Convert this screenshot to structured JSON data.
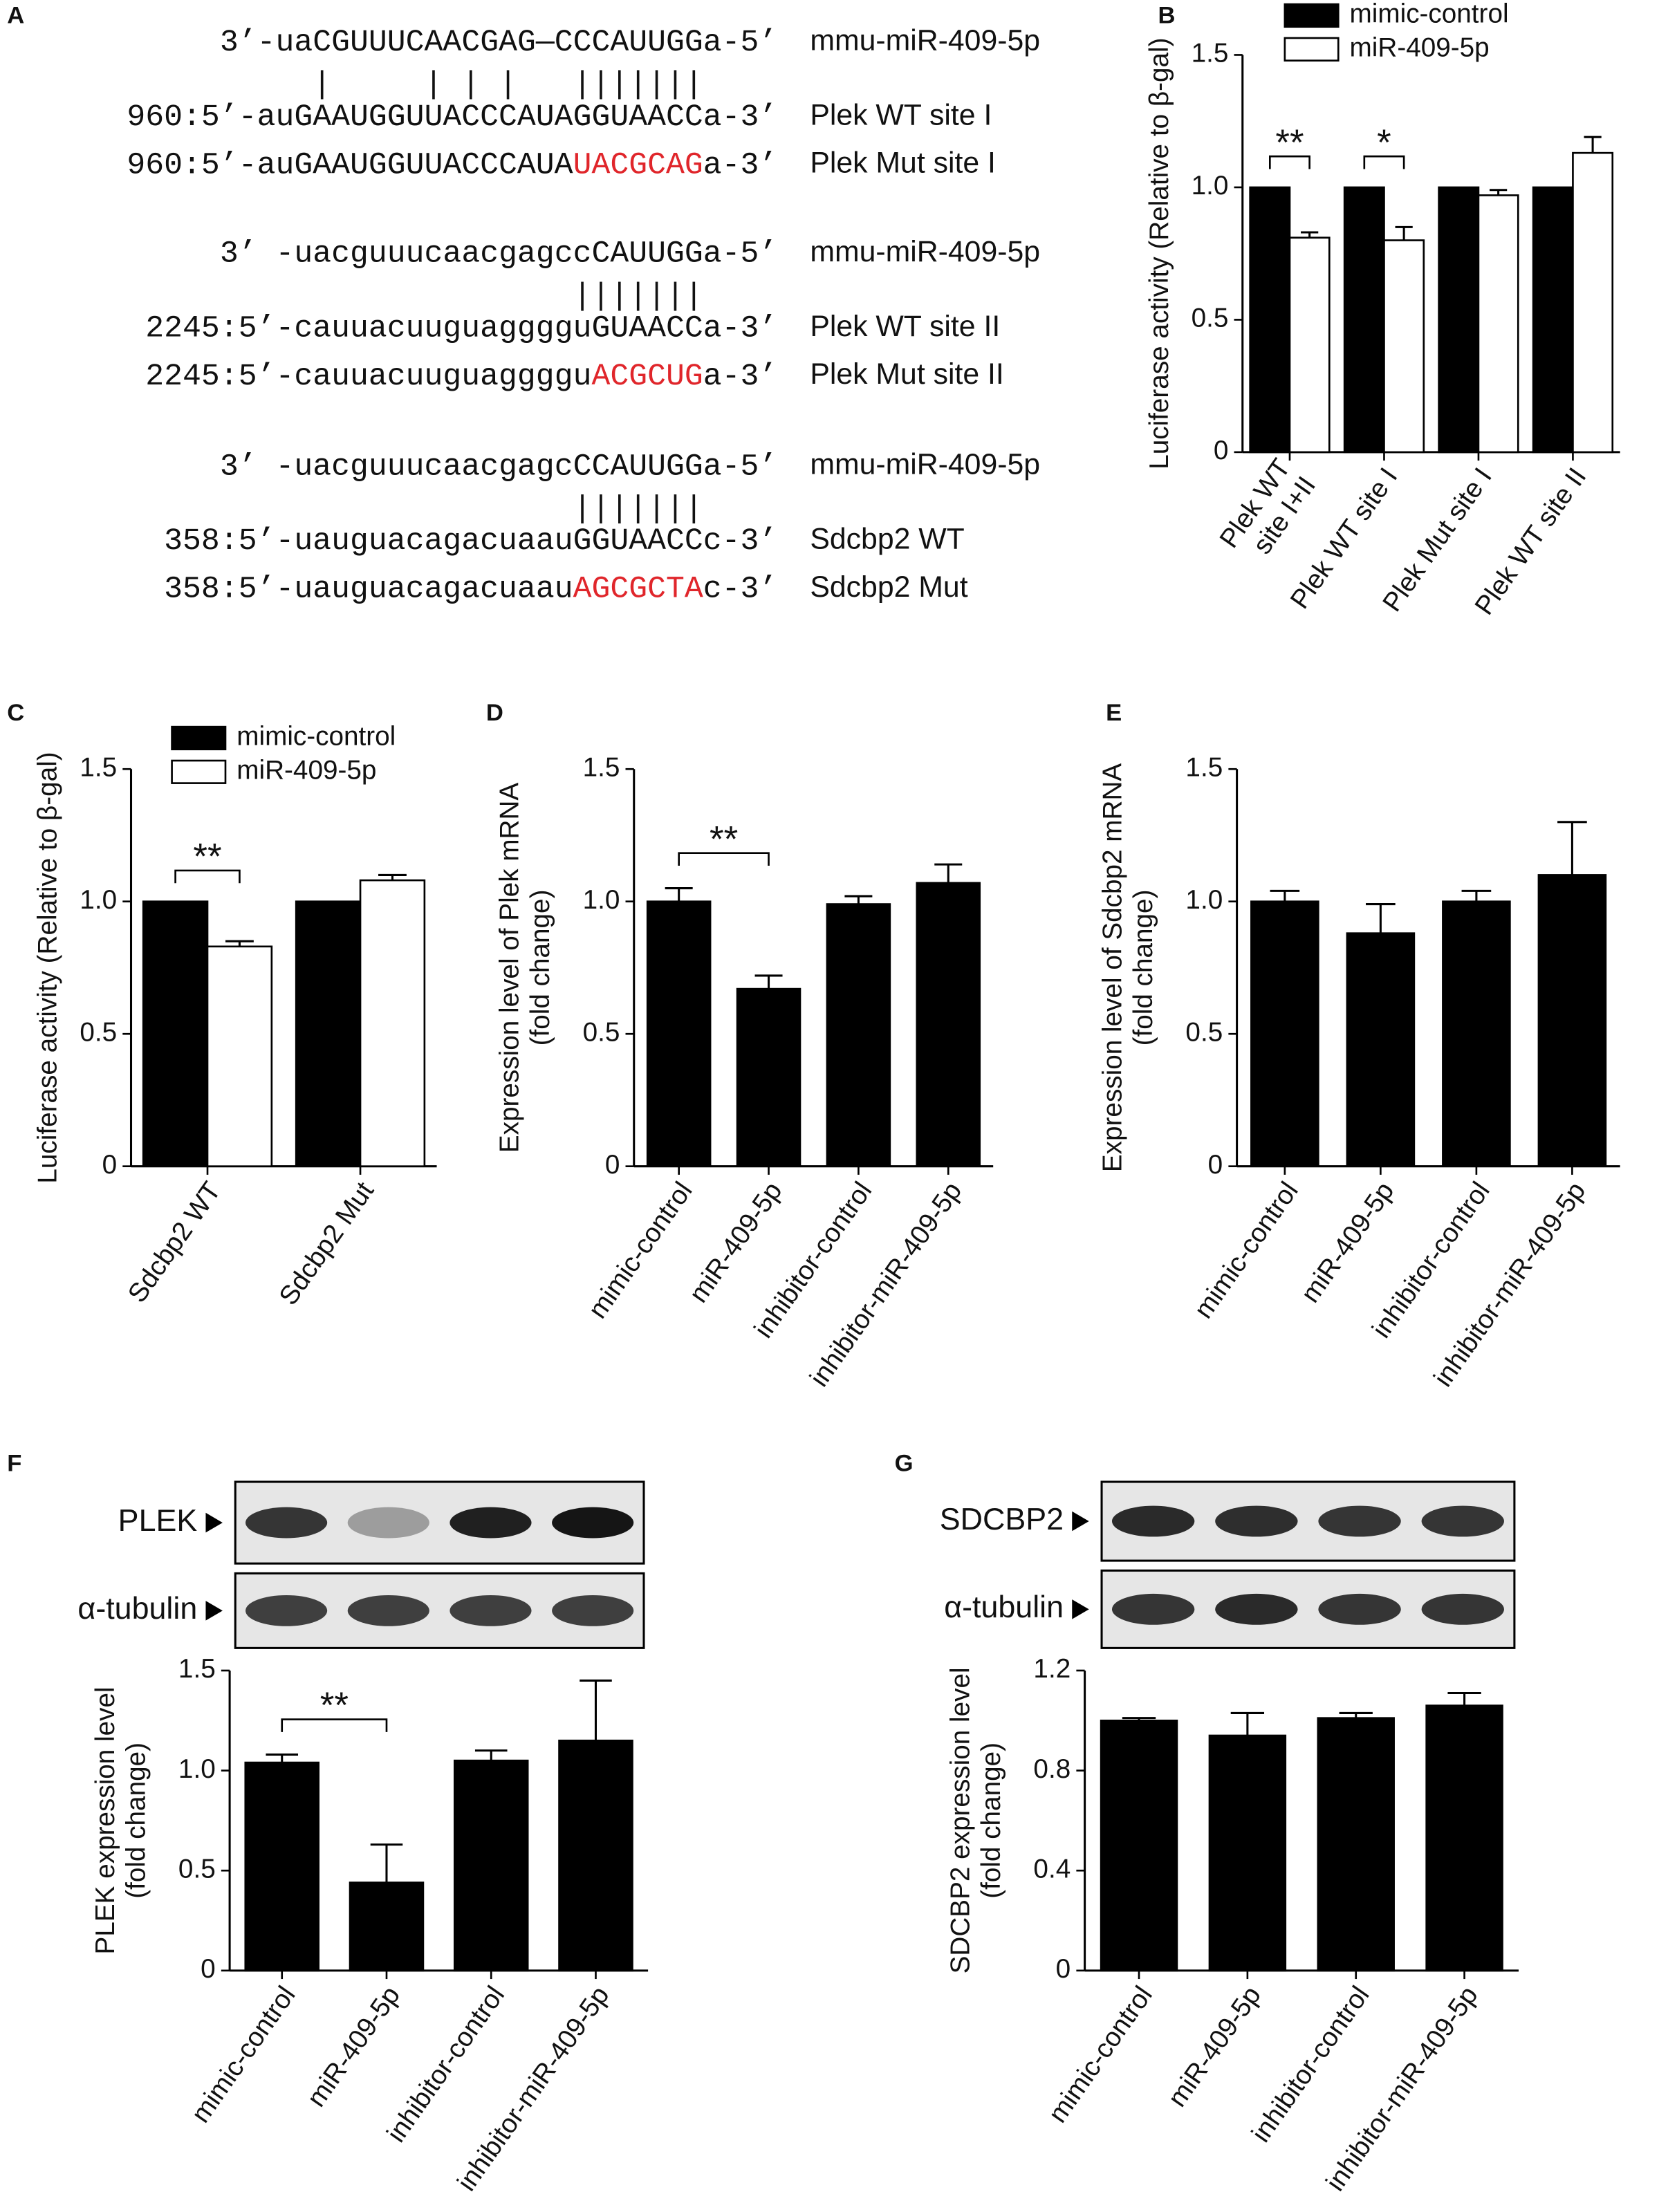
{
  "sequence_panel": {
    "panel": "A",
    "groups": [
      {
        "lines": [
          {
            "segments": [
              {
                "text": "3’-uaCGUUUCAACGAG—CCCAUUGGa-5’"
              }
            ],
            "name": "mmu-miR-409-5p"
          },
          {
            "segments": [
              {
                "text": "     |     | | |   |||||||    "
              }
            ]
          },
          {
            "segments": [
              {
                "text": "960:5’-auGAAUGGUUACCCAUAGGUAACCa-3’"
              }
            ],
            "name": "Plek WT site I"
          },
          {
            "segments": [
              {
                "text": "960:5’-auGAAUGGUUACCCAUA"
              },
              {
                "text": "UACGCAG",
                "color": "#e0262b"
              },
              {
                "text": "a-3’"
              }
            ],
            "name": "Plek Mut site I"
          }
        ]
      },
      {
        "lines": [
          {
            "segments": [
              {
                "text": "3’ -uacguuucaacgagccCAUUGGa-5’"
              }
            ],
            "name": "mmu-miR-409-5p"
          },
          {
            "segments": [
              {
                "text": "                   |||||||    "
              }
            ]
          },
          {
            "segments": [
              {
                "text": "2245:5’-cauuacuuguagggguGUAACCa-3’"
              }
            ],
            "name": "Plek WT site II"
          },
          {
            "segments": [
              {
                "text": "2245:5’-cauuacuuguaggggu"
              },
              {
                "text": "ACGCUG",
                "color": "#e0262b"
              },
              {
                "text": "a-3’"
              }
            ],
            "name": "Plek Mut site II"
          }
        ]
      },
      {
        "lines": [
          {
            "segments": [
              {
                "text": "3’ -uacguuucaacgagcCCAUUGGa-5’"
              }
            ],
            "name": "mmu-miR-409-5p"
          },
          {
            "segments": [
              {
                "text": "                   |||||||    "
              }
            ]
          },
          {
            "segments": [
              {
                "text": "358:5’-uauguacagacuaauGGUAACCc-3’"
              }
            ],
            "name": "Sdcbp2 WT"
          },
          {
            "segments": [
              {
                "text": "358:5’-uauguacagacuaau"
              },
              {
                "text": "AGCGCTA",
                "color": "#e0262b"
              },
              {
                "text": "c-3’"
              }
            ],
            "name": "Sdcbp2 Mut"
          }
        ]
      }
    ]
  },
  "chart_data": [
    {
      "type": "bar",
      "panel": "B",
      "ylabel": "Luciferase activity (Relative to β-gal)",
      "categories": [
        "Plek WT\nsite I+II",
        "Plek WT site I",
        "Plek Mut site I",
        "Plek WT site II"
      ],
      "series": [
        {
          "name": "mimic-control",
          "color": "#000000",
          "values": [
            1,
            1,
            1,
            1
          ]
        },
        {
          "name": "miR-409-5p",
          "color": "#ffffff",
          "values": [
            0.81,
            0.8,
            0.97,
            1.13
          ],
          "errors": [
            0.02,
            0.05,
            0.02,
            0.06
          ]
        }
      ],
      "ylim": [
        0,
        1.5
      ],
      "yticks": [
        0,
        0.5,
        {
          "value": 1,
          "label": "1.0"
        },
        1.5
      ],
      "legend": "top",
      "annotations": [
        {
          "text": "**",
          "category": 0
        },
        {
          "text": "*",
          "category": 1
        }
      ]
    },
    {
      "type": "bar",
      "panel": "C",
      "ylabel": "Luciferase activity (Relative to β-gal)",
      "categories": [
        "Sdcbp2 WT",
        "Sdcbp2 Mut"
      ],
      "series": [
        {
          "name": "mimic-control",
          "color": "#000000",
          "values": [
            1,
            1
          ]
        },
        {
          "name": "miR-409-5p",
          "color": "#ffffff",
          "values": [
            0.83,
            1.08
          ],
          "errors": [
            0.02,
            0.02
          ]
        }
      ],
      "ylim": [
        0,
        1.5
      ],
      "yticks": [
        0,
        0.5,
        {
          "value": 1,
          "label": "1.0"
        },
        1.5
      ],
      "legend": "top-left",
      "annotations": [
        {
          "text": "**",
          "category": 0
        }
      ]
    },
    {
      "type": "bar",
      "panel": "D",
      "ylabel": "Expression level of Plek mRNA\n(fold change)",
      "categories": [
        "mimic-control",
        "miR-409-5p",
        "inhibitor-control",
        "inhibitor-miR-409-5p"
      ],
      "series": [
        {
          "color": "#000000",
          "values": [
            1.0,
            0.67,
            0.99,
            1.07
          ],
          "errors": [
            0.05,
            0.05,
            0.03,
            0.07
          ]
        }
      ],
      "ylim": [
        0,
        1.5
      ],
      "yticks": [
        0,
        0.5,
        {
          "value": 1,
          "label": "1.0"
        },
        1.5
      ],
      "annotations": [
        {
          "text": "**",
          "between": [
            0,
            1
          ]
        }
      ]
    },
    {
      "type": "bar",
      "panel": "E",
      "ylabel": "Expression level of Sdcbp2 mRNA\n(fold change)",
      "categories": [
        "mimic-control",
        "miR-409-5p",
        "inhibitor-control",
        "inhibitor-miR-409-5p"
      ],
      "series": [
        {
          "color": "#000000",
          "values": [
            1.0,
            0.88,
            1.0,
            1.1
          ],
          "errors": [
            0.04,
            0.11,
            0.04,
            0.2
          ]
        }
      ],
      "ylim": [
        0,
        1.5
      ],
      "yticks": [
        0,
        0.5,
        {
          "value": 1,
          "label": "1.0"
        },
        1.5
      ]
    },
    {
      "type": "bar",
      "panel": "F",
      "ylabel": "PLEK expression level\n(fold change)",
      "blots": [
        "PLEK",
        "α-tubulin"
      ],
      "categories": [
        "mimic-control",
        "miR-409-5p",
        "inhibitor-control",
        "inhibitor-miR-409-5p"
      ],
      "series": [
        {
          "color": "#000000",
          "values": [
            1.04,
            0.44,
            1.05,
            1.15
          ],
          "errors": [
            0.04,
            0.19,
            0.05,
            0.3
          ]
        }
      ],
      "ylim": [
        0,
        1.5
      ],
      "yticks": [
        0,
        0.5,
        {
          "value": 1,
          "label": "1.0"
        },
        1.5
      ],
      "annotations": [
        {
          "text": "**",
          "between": [
            0,
            1
          ]
        }
      ]
    },
    {
      "type": "bar",
      "panel": "G",
      "ylabel": "SDCBP2 expression level\n(fold change)",
      "blots": [
        "SDCBP2",
        "α-tubulin"
      ],
      "categories": [
        "mimic-control",
        "miR-409-5p",
        "inhibitor-control",
        "inhibitor-miR-409-5p"
      ],
      "series": [
        {
          "color": "#000000",
          "values": [
            1.0,
            0.94,
            1.01,
            1.06
          ],
          "errors": [
            0.01,
            0.09,
            0.02,
            0.05
          ]
        }
      ],
      "ylim": [
        0,
        1.2
      ],
      "yticks": [
        0,
        0.4,
        0.8,
        1.2
      ]
    }
  ]
}
